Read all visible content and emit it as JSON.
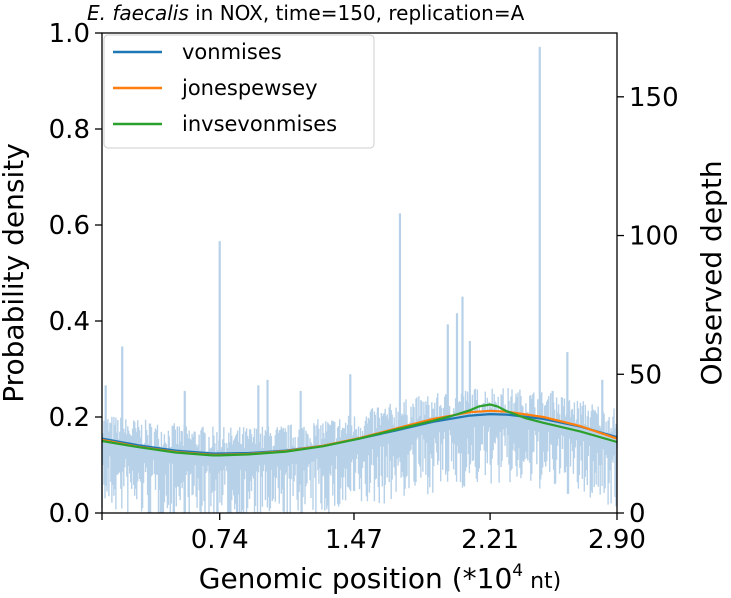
{
  "chart_data": {
    "type": "line",
    "title_italic": "E. faecalis",
    "title_rest": " in NOX, time=150, replication=A",
    "xlabel_main": "Genomic position (*10",
    "xlabel_sup": "4",
    "xlabel_unit": " nt)",
    "ylabel_left": "Probability density",
    "ylabel_right": "Observed depth",
    "xlim": [
      0.1,
      2.9
    ],
    "ylim_left": [
      0.0,
      1.0
    ],
    "ylim_right": [
      0,
      173
    ],
    "x_ticks": [
      {
        "value": 0.74,
        "label": "0.74"
      },
      {
        "value": 1.47,
        "label": "1.47"
      },
      {
        "value": 2.21,
        "label": "2.21"
      },
      {
        "value": 2.9,
        "label": "2.90"
      }
    ],
    "y_ticks_left": [
      {
        "value": 0.0,
        "label": "0.0"
      },
      {
        "value": 0.2,
        "label": "0.2"
      },
      {
        "value": 0.4,
        "label": "0.4"
      },
      {
        "value": 0.6,
        "label": "0.6"
      },
      {
        "value": 0.8,
        "label": "0.8"
      },
      {
        "value": 1.0,
        "label": "1.0"
      }
    ],
    "y_ticks_right": [
      {
        "value": 0,
        "label": "0"
      },
      {
        "value": 50,
        "label": "50"
      },
      {
        "value": 100,
        "label": "100"
      },
      {
        "value": 150,
        "label": "150"
      }
    ],
    "legend_position": "top-left",
    "series": [
      {
        "name": "vonmises",
        "color": "#1f77b4",
        "x": [
          0.1,
          0.3,
          0.5,
          0.7,
          0.74,
          0.9,
          1.1,
          1.3,
          1.5,
          1.7,
          1.9,
          2.1,
          2.21,
          2.3,
          2.5,
          2.7,
          2.9
        ],
        "y": [
          0.155,
          0.141,
          0.13,
          0.124,
          0.124,
          0.125,
          0.13,
          0.14,
          0.155,
          0.172,
          0.19,
          0.203,
          0.206,
          0.205,
          0.196,
          0.18,
          0.158
        ]
      },
      {
        "name": "jonespewsey",
        "color": "#ff7f0e",
        "x": [
          0.1,
          0.3,
          0.5,
          0.7,
          0.74,
          0.9,
          1.1,
          1.3,
          1.5,
          1.7,
          1.9,
          2.1,
          2.21,
          2.3,
          2.5,
          2.7,
          2.9
        ],
        "y": [
          0.152,
          0.138,
          0.127,
          0.121,
          0.121,
          0.123,
          0.129,
          0.14,
          0.156,
          0.176,
          0.196,
          0.21,
          0.213,
          0.211,
          0.2,
          0.181,
          0.155
        ]
      },
      {
        "name": "invsevonmises",
        "color": "#2ca02c",
        "x": [
          0.1,
          0.3,
          0.5,
          0.7,
          0.74,
          0.9,
          1.1,
          1.3,
          1.5,
          1.7,
          1.9,
          2.0,
          2.1,
          2.15,
          2.21,
          2.25,
          2.3,
          2.4,
          2.5,
          2.7,
          2.9
        ],
        "y": [
          0.15,
          0.137,
          0.126,
          0.12,
          0.12,
          0.122,
          0.128,
          0.139,
          0.155,
          0.174,
          0.192,
          0.202,
          0.214,
          0.222,
          0.226,
          0.222,
          0.212,
          0.198,
          0.188,
          0.17,
          0.148
        ]
      }
    ],
    "depth": {
      "name": "Observed depth",
      "color": "#b7d1e8",
      "baseline_x": [
        0.1,
        0.4,
        0.74,
        1.1,
        1.47,
        1.8,
        2.0,
        2.21,
        2.5,
        2.9
      ],
      "baseline_y": [
        26,
        23,
        21,
        22,
        26,
        32,
        34,
        36,
        34,
        28
      ],
      "spikes": [
        {
          "x": 0.12,
          "y": 46
        },
        {
          "x": 0.21,
          "y": 60
        },
        {
          "x": 0.55,
          "y": 44
        },
        {
          "x": 0.74,
          "y": 98
        },
        {
          "x": 0.95,
          "y": 46
        },
        {
          "x": 1.0,
          "y": 48
        },
        {
          "x": 1.18,
          "y": 44
        },
        {
          "x": 1.45,
          "y": 50
        },
        {
          "x": 1.6,
          "y": 38
        },
        {
          "x": 1.72,
          "y": 108
        },
        {
          "x": 1.98,
          "y": 68
        },
        {
          "x": 2.03,
          "y": 72
        },
        {
          "x": 2.06,
          "y": 78
        },
        {
          "x": 2.1,
          "y": 62
        },
        {
          "x": 2.35,
          "y": 40
        },
        {
          "x": 2.48,
          "y": 168
        },
        {
          "x": 2.55,
          "y": 44
        },
        {
          "x": 2.63,
          "y": 58
        },
        {
          "x": 2.82,
          "y": 48
        }
      ]
    }
  }
}
